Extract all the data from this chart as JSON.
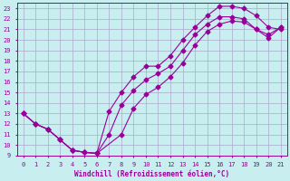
{
  "xlabel": "Windchill (Refroidissement éolien,°C)",
  "bg_color": "#c8eef0",
  "line_color": "#990099",
  "grid_color": "#aaaacc",
  "xlim": [
    -0.5,
    21.5
  ],
  "ylim": [
    9,
    23.5
  ],
  "xticks": [
    0,
    1,
    2,
    3,
    4,
    5,
    6,
    7,
    8,
    9,
    10,
    11,
    12,
    13,
    14,
    15,
    16,
    17,
    18,
    19,
    20,
    21
  ],
  "yticks": [
    9,
    10,
    11,
    12,
    13,
    14,
    15,
    16,
    17,
    18,
    19,
    20,
    21,
    22,
    23
  ],
  "line1_x": [
    0,
    1,
    2,
    3,
    4,
    5,
    6,
    7,
    8,
    9,
    10,
    11,
    12,
    13,
    14,
    15,
    16,
    17,
    18,
    19,
    20,
    21
  ],
  "line1_y": [
    13,
    12,
    11.5,
    10.5,
    9.5,
    9.3,
    9.2,
    13.2,
    15.0,
    16.5,
    17.5,
    17.5,
    18.5,
    20,
    21.2,
    22.3,
    23.2,
    23.2,
    23.0,
    22.3,
    21.2,
    21.0
  ],
  "line2_x": [
    0,
    1,
    2,
    3,
    4,
    5,
    6,
    7,
    8,
    9,
    10,
    11,
    12,
    13,
    14,
    15,
    16,
    17,
    18,
    19,
    20,
    21
  ],
  "line2_y": [
    13,
    12,
    11.5,
    10.5,
    9.5,
    9.3,
    9.2,
    11.0,
    13.8,
    15.2,
    16.2,
    16.8,
    17.5,
    19.0,
    20.5,
    21.5,
    22.2,
    22.2,
    22.0,
    21.0,
    20.2,
    21.2
  ],
  "line3_x": [
    0,
    1,
    2,
    3,
    4,
    5,
    6,
    8,
    9,
    10,
    11,
    12,
    13,
    14,
    15,
    16,
    17,
    18,
    19,
    20,
    21
  ],
  "line3_y": [
    13,
    12,
    11.5,
    10.5,
    9.5,
    9.3,
    9.2,
    11.0,
    13.5,
    14.8,
    15.5,
    16.5,
    17.8,
    19.5,
    20.8,
    21.5,
    21.8,
    21.7,
    21.0,
    20.5,
    21.2
  ]
}
